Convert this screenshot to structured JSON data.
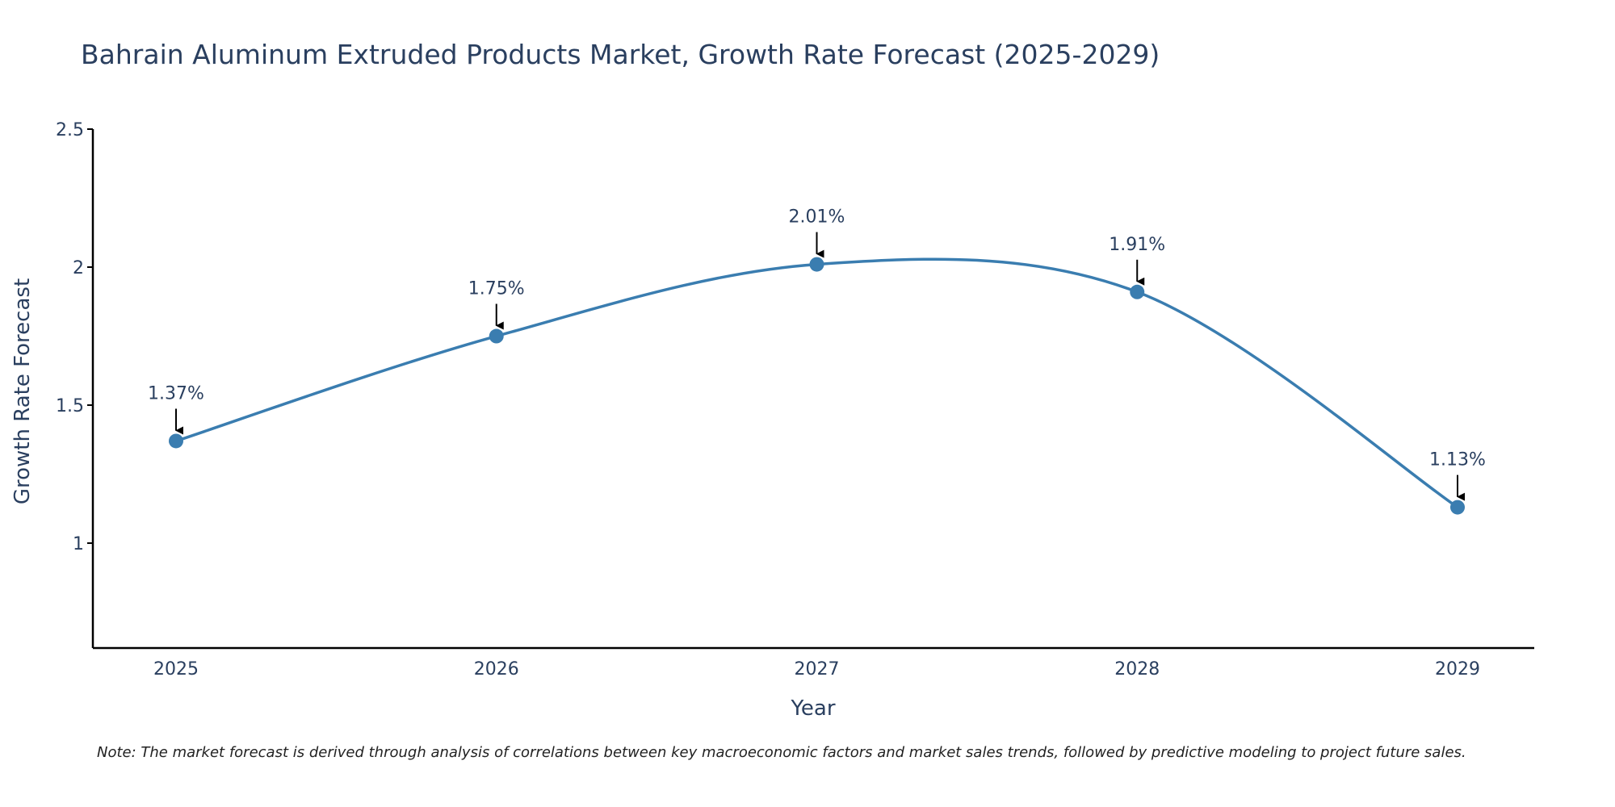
{
  "chart_data": {
    "type": "line",
    "title": "Bahrain Aluminum Extruded Products Market, Growth Rate Forecast (2025-2029)",
    "xlabel": "Year",
    "ylabel": "Growth Rate Forecast",
    "categories": [
      "2025",
      "2026",
      "2027",
      "2028",
      "2029"
    ],
    "series": [
      {
        "name": "Growth Rate Forecast",
        "values": [
          1.37,
          1.75,
          2.01,
          1.91,
          1.13
        ],
        "labels": [
          "1.37%",
          "1.75%",
          "2.01%",
          "1.91%",
          "1.13%"
        ],
        "color": "#3a7db0",
        "line_shape": "spline"
      }
    ],
    "ylim": [
      0.62,
      2.5
    ],
    "yticks": [
      1,
      1.5,
      2,
      2.5
    ],
    "ytick_labels": [
      "1",
      "1.5",
      "2",
      "2.5"
    ],
    "grid": false,
    "annotation_color": "#000000"
  },
  "note": "Note: The market forecast is derived through analysis of correlations between key macroeconomic factors and market sales trends, followed by predictive modeling to project future sales."
}
